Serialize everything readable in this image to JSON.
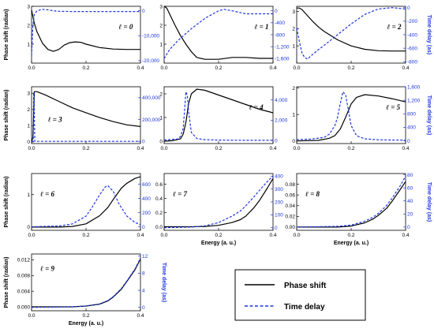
{
  "chart_data": [
    {
      "type": "line",
      "annotation": "ℓ = 0",
      "ylabel_left": "Phase shift (radian)",
      "ylabel_right": "",
      "xlabel": "",
      "xlim": [
        0,
        0.4
      ],
      "ylim_left": [
        0,
        3
      ],
      "ylim_right": [
        -21000,
        1800
      ],
      "x_ticks": [
        "0.0",
        "0.2",
        "0.4"
      ],
      "y_ticks_left": [
        "1",
        "2",
        "3"
      ],
      "y_ticks_right": [
        "0",
        "-10,000",
        "-20,000"
      ],
      "series": [
        {
          "axis": "left",
          "x": [
            0.0,
            0.01,
            0.02,
            0.04,
            0.06,
            0.08,
            0.1,
            0.12,
            0.14,
            0.16,
            0.18,
            0.2,
            0.25,
            0.3,
            0.35,
            0.4
          ],
          "y": [
            2.8,
            2.1,
            1.65,
            1.05,
            0.72,
            0.62,
            0.72,
            0.95,
            1.08,
            1.12,
            1.1,
            1.0,
            0.82,
            0.74,
            0.72,
            0.72
          ]
        },
        {
          "axis": "right",
          "x": [
            0.0,
            0.005,
            0.01,
            0.02,
            0.04,
            0.06,
            0.08,
            0.1,
            0.15,
            0.2,
            0.3,
            0.4
          ],
          "y": [
            -18000,
            -6000,
            -1500,
            0,
            600,
            400,
            0,
            -200,
            -300,
            -300,
            -300,
            -300
          ]
        }
      ]
    },
    {
      "type": "line",
      "annotation": "ℓ = 1",
      "ylabel_left": "",
      "ylabel_right": "",
      "xlabel": "",
      "xlim": [
        0,
        0.4
      ],
      "ylim_left": [
        0,
        3
      ],
      "ylim_right": [
        -1750,
        150
      ],
      "x_ticks": [
        "0.0",
        "0.2",
        "0.4"
      ],
      "y_ticks_left": [
        "1",
        "2",
        "3"
      ],
      "y_ticks_right": [
        "0",
        "-400",
        "-800",
        "-1,200",
        "-1,600"
      ],
      "series": [
        {
          "axis": "left",
          "x": [
            0.0,
            0.01,
            0.02,
            0.04,
            0.06,
            0.08,
            0.1,
            0.12,
            0.15,
            0.2,
            0.25,
            0.3,
            0.35,
            0.4
          ],
          "y": [
            3.0,
            2.9,
            2.6,
            2.0,
            1.45,
            1.0,
            0.6,
            0.3,
            0.2,
            0.2,
            0.3,
            0.3,
            0.25,
            0.25
          ]
        },
        {
          "axis": "right",
          "x": [
            0.0,
            0.01,
            0.02,
            0.05,
            0.1,
            0.15,
            0.2,
            0.22,
            0.25,
            0.3,
            0.35,
            0.4
          ],
          "y": [
            -1600,
            -1450,
            -1300,
            -1000,
            -600,
            -250,
            0,
            50,
            0,
            -100,
            -100,
            -100
          ]
        }
      ]
    },
    {
      "type": "line",
      "annotation": "ℓ = 2",
      "ylabel_left": "",
      "ylabel_right": "Time delay (as)",
      "xlabel": "",
      "xlim": [
        0,
        0.4
      ],
      "ylim_left": [
        0,
        3.3
      ],
      "ylim_right": [
        -820,
        20
      ],
      "x_ticks": [
        "0.0",
        "0.2",
        "0.4"
      ],
      "y_ticks_left": [
        "1",
        "2",
        "3"
      ],
      "y_ticks_right": [
        "0",
        "-200",
        "-400",
        "-600",
        "-800"
      ],
      "series": [
        {
          "axis": "left",
          "x": [
            0.0,
            0.01,
            0.02,
            0.04,
            0.06,
            0.08,
            0.1,
            0.15,
            0.2,
            0.25,
            0.3,
            0.35,
            0.4
          ],
          "y": [
            3.2,
            3.2,
            3.1,
            2.75,
            2.4,
            2.1,
            1.85,
            1.35,
            1.0,
            0.8,
            0.72,
            0.7,
            0.7
          ]
        },
        {
          "axis": "right",
          "x": [
            0.0,
            0.01,
            0.02,
            0.03,
            0.04,
            0.05,
            0.08,
            0.1,
            0.15,
            0.2,
            0.25,
            0.3,
            0.35,
            0.4
          ],
          "y": [
            -300,
            -500,
            -680,
            -740,
            -760,
            -720,
            -620,
            -560,
            -400,
            -240,
            -100,
            -20,
            0,
            -20
          ]
        }
      ]
    },
    {
      "type": "line",
      "annotation": "ℓ = 3",
      "ylabel_left": "Phase shift (radian)",
      "ylabel_right": "",
      "xlabel": "",
      "xlim": [
        0,
        0.4
      ],
      "ylim_left": [
        -0.1,
        3.4
      ],
      "ylim_right": [
        -20000,
        500000
      ],
      "x_ticks": [
        "0.0",
        "0.2",
        "0.4"
      ],
      "y_ticks_left": [
        "0",
        "1",
        "2",
        "3"
      ],
      "y_ticks_right": [
        "0",
        "200,000",
        "400,000"
      ],
      "series": [
        {
          "axis": "left",
          "x": [
            0.0,
            0.005,
            0.01,
            0.02,
            0.05,
            0.1,
            0.15,
            0.2,
            0.25,
            0.3,
            0.35,
            0.4
          ],
          "y": [
            0.0,
            0.3,
            3.1,
            3.1,
            2.9,
            2.5,
            2.1,
            1.8,
            1.5,
            1.25,
            1.05,
            0.95
          ]
        },
        {
          "axis": "right",
          "x": [
            0.0,
            0.006,
            0.0075,
            0.009,
            0.012,
            0.02,
            0.4
          ],
          "y": [
            0,
            0,
            450000,
            450000,
            0,
            0,
            0
          ]
        }
      ]
    },
    {
      "type": "line",
      "annotation": "ℓ = 4",
      "ylabel_left": "",
      "ylabel_right": "",
      "xlabel": "",
      "xlim": [
        0,
        0.4
      ],
      "ylim_left": [
        -0.1,
        2.3
      ],
      "ylim_right": [
        -300,
        5300
      ],
      "x_ticks": [
        "0.0",
        "0.2",
        "0.4"
      ],
      "y_ticks_left": [
        "0",
        "1",
        "2"
      ],
      "y_ticks_right": [
        "0",
        "2,000",
        "4,000"
      ],
      "series": [
        {
          "axis": "left",
          "x": [
            0.0,
            0.03,
            0.06,
            0.07,
            0.08,
            0.09,
            0.1,
            0.12,
            0.15,
            0.2,
            0.25,
            0.3,
            0.35,
            0.4
          ],
          "y": [
            0.0,
            0.02,
            0.1,
            0.3,
            0.8,
            1.6,
            2.0,
            2.2,
            2.15,
            1.95,
            1.75,
            1.55,
            1.35,
            1.2
          ]
        },
        {
          "axis": "right",
          "x": [
            0.0,
            0.05,
            0.06,
            0.07,
            0.075,
            0.08,
            0.085,
            0.09,
            0.1,
            0.12,
            0.15,
            0.2,
            0.3,
            0.4
          ],
          "y": [
            50,
            150,
            400,
            1200,
            3000,
            4800,
            4500,
            2800,
            800,
            200,
            80,
            40,
            20,
            20
          ]
        }
      ]
    },
    {
      "type": "line",
      "annotation": "ℓ = 5",
      "ylabel_left": "",
      "ylabel_right": "Time delay (as)",
      "xlabel": "",
      "xlim": [
        0,
        0.4
      ],
      "ylim_left": [
        -0.1,
        2.05
      ],
      "ylim_right": [
        -80,
        1600
      ],
      "x_ticks": [
        "0.0",
        "0.2",
        "0.4"
      ],
      "y_ticks_left": [
        "0",
        "1",
        "2"
      ],
      "y_ticks_right": [
        "0",
        "400",
        "800",
        "1,200",
        "1,600"
      ],
      "series": [
        {
          "axis": "left",
          "x": [
            0.0,
            0.08,
            0.12,
            0.14,
            0.16,
            0.18,
            0.2,
            0.22,
            0.25,
            0.3,
            0.35,
            0.4
          ],
          "y": [
            0.0,
            0.02,
            0.1,
            0.2,
            0.45,
            0.9,
            1.4,
            1.65,
            1.75,
            1.7,
            1.6,
            1.48
          ]
        },
        {
          "axis": "right",
          "x": [
            0.0,
            0.05,
            0.1,
            0.12,
            0.14,
            0.15,
            0.16,
            0.17,
            0.18,
            0.19,
            0.2,
            0.22,
            0.25,
            0.3,
            0.4
          ],
          "y": [
            40,
            50,
            100,
            200,
            450,
            700,
            1100,
            1450,
            1350,
            900,
            450,
            150,
            60,
            30,
            20
          ]
        }
      ]
    },
    {
      "type": "line",
      "annotation": "ℓ = 6",
      "ylabel_left": "Phase shift (radian)",
      "ylabel_right": "",
      "xlabel": "",
      "xlim": [
        0,
        0.4
      ],
      "ylim_left": [
        -0.1,
        1.65
      ],
      "ylim_right": [
        -50,
        750
      ],
      "x_ticks": [
        "0.0",
        "0.2",
        "0.4"
      ],
      "y_ticks_left": [
        "0",
        "1"
      ],
      "y_ticks_right": [
        "0",
        "200",
        "400",
        "600"
      ],
      "series": [
        {
          "axis": "left",
          "x": [
            0.0,
            0.1,
            0.15,
            0.2,
            0.25,
            0.28,
            0.3,
            0.33,
            0.35,
            0.38,
            0.4
          ],
          "y": [
            0.0,
            0.0,
            0.02,
            0.1,
            0.35,
            0.6,
            0.85,
            1.2,
            1.35,
            1.5,
            1.55
          ]
        },
        {
          "axis": "right",
          "x": [
            0.0,
            0.1,
            0.15,
            0.2,
            0.22,
            0.25,
            0.27,
            0.28,
            0.3,
            0.32,
            0.35,
            0.38,
            0.4
          ],
          "y": [
            0,
            10,
            40,
            150,
            260,
            450,
            560,
            580,
            500,
            330,
            150,
            60,
            30
          ]
        }
      ]
    },
    {
      "type": "line",
      "annotation": "ℓ = 7",
      "ylabel_left": "",
      "ylabel_right": "",
      "xlabel": "Energy (a. u.)",
      "xlim": [
        0,
        0.4
      ],
      "ylim_left": [
        -0.05,
        0.75
      ],
      "ylim_right": [
        -20,
        420
      ],
      "x_ticks": [
        "0.0",
        "0.2",
        "0.4"
      ],
      "y_ticks_left": [
        "0.0",
        "0.2",
        "0.4",
        "0.6"
      ],
      "y_ticks_right": [
        "0",
        "100",
        "200",
        "300",
        "400"
      ],
      "series": [
        {
          "axis": "left",
          "x": [
            0.0,
            0.1,
            0.15,
            0.2,
            0.25,
            0.28,
            0.3,
            0.33,
            0.35,
            0.38,
            0.4
          ],
          "y": [
            0.0,
            0.0,
            0.005,
            0.02,
            0.06,
            0.1,
            0.15,
            0.27,
            0.37,
            0.55,
            0.68
          ]
        },
        {
          "axis": "right",
          "x": [
            0.0,
            0.1,
            0.15,
            0.2,
            0.25,
            0.28,
            0.3,
            0.33,
            0.35,
            0.38,
            0.4
          ],
          "y": [
            0,
            5,
            15,
            40,
            90,
            130,
            170,
            240,
            290,
            360,
            400
          ]
        }
      ]
    },
    {
      "type": "line",
      "annotation": "ℓ = 8",
      "ylabel_left": "",
      "ylabel_right": "Time delay (as)",
      "xlabel": "Energy (a. u.)",
      "xlim": [
        0,
        0.4
      ],
      "ylim_left": [
        -0.006,
        0.1
      ],
      "ylim_right": [
        -5,
        82
      ],
      "x_ticks": [
        "0.0",
        "0.2",
        "0.4"
      ],
      "y_ticks_left": [
        "0.00",
        "0.02",
        "0.04",
        "0.06",
        "0.08"
      ],
      "y_ticks_right": [
        "0",
        "20",
        "40",
        "60",
        "80"
      ],
      "series": [
        {
          "axis": "left",
          "x": [
            0.0,
            0.15,
            0.2,
            0.25,
            0.28,
            0.3,
            0.33,
            0.35,
            0.38,
            0.4
          ],
          "y": [
            0.0,
            0.0,
            0.002,
            0.008,
            0.015,
            0.022,
            0.035,
            0.048,
            0.07,
            0.085
          ]
        },
        {
          "axis": "right",
          "x": [
            0.0,
            0.15,
            0.2,
            0.25,
            0.28,
            0.3,
            0.33,
            0.35,
            0.38,
            0.4
          ],
          "y": [
            0,
            1,
            3,
            9,
            15,
            21,
            33,
            44,
            63,
            78
          ]
        }
      ]
    },
    {
      "type": "line",
      "annotation": "ℓ = 9",
      "ylabel_left": "Phase shift (radian)",
      "ylabel_right": "Time delay (as)",
      "xlabel": "Energy (a. u.)",
      "xlim": [
        0,
        0.4
      ],
      "ylim_left": [
        -0.001,
        0.0135
      ],
      "ylim_right": [
        -0.8,
        12.5
      ],
      "x_ticks": [
        "0.0",
        "0.2",
        "0.4"
      ],
      "y_ticks_left": [
        "0.000",
        "0.004",
        "0.008",
        "0.012"
      ],
      "y_ticks_right": [
        "0",
        "4",
        "8",
        "12"
      ],
      "series": [
        {
          "axis": "left",
          "x": [
            0.0,
            0.15,
            0.2,
            0.25,
            0.28,
            0.3,
            0.33,
            0.35,
            0.38,
            0.4
          ],
          "y": [
            0.0,
            0.0,
            0.0002,
            0.0007,
            0.0015,
            0.0025,
            0.0045,
            0.0065,
            0.0095,
            0.0122
          ]
        },
        {
          "axis": "right",
          "x": [
            0.0,
            0.15,
            0.2,
            0.25,
            0.28,
            0.3,
            0.33,
            0.35,
            0.38,
            0.4
          ],
          "y": [
            0,
            0.1,
            0.3,
            0.8,
            1.6,
            2.5,
            4.4,
            6.2,
            9.0,
            11.5
          ]
        }
      ]
    }
  ],
  "legend": {
    "phase_shift": "Phase shift",
    "time_delay": "Time delay",
    "colors": {
      "phase_shift": "#000000",
      "time_delay": "#1d35e0"
    }
  }
}
